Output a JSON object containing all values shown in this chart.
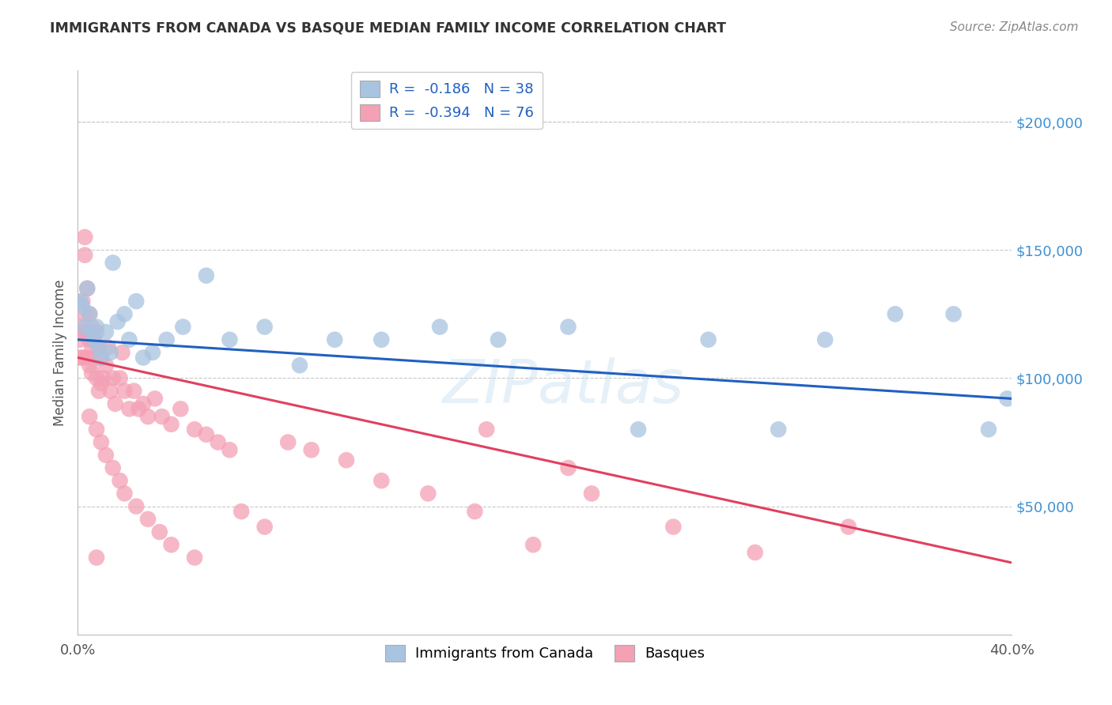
{
  "title": "IMMIGRANTS FROM CANADA VS BASQUE MEDIAN FAMILY INCOME CORRELATION CHART",
  "source": "Source: ZipAtlas.com",
  "ylabel": "Median Family Income",
  "xlim": [
    0.0,
    0.4
  ],
  "ylim": [
    0,
    220000
  ],
  "ytick_positions": [
    50000,
    100000,
    150000,
    200000
  ],
  "ytick_labels": [
    "$50,000",
    "$100,000",
    "$150,000",
    "$200,000"
  ],
  "watermark": "ZIPatlas",
  "legend_r1": "R =  -0.186",
  "legend_n1": "N = 38",
  "legend_r2": "R =  -0.394",
  "legend_n2": "N = 76",
  "blue_scatter_x": [
    0.001,
    0.002,
    0.003,
    0.004,
    0.005,
    0.006,
    0.007,
    0.008,
    0.009,
    0.01,
    0.012,
    0.014,
    0.015,
    0.017,
    0.02,
    0.022,
    0.025,
    0.028,
    0.032,
    0.038,
    0.045,
    0.055,
    0.065,
    0.08,
    0.095,
    0.11,
    0.13,
    0.155,
    0.18,
    0.21,
    0.24,
    0.27,
    0.3,
    0.32,
    0.35,
    0.375,
    0.39,
    0.398
  ],
  "blue_scatter_y": [
    130000,
    128000,
    120000,
    135000,
    125000,
    118000,
    115000,
    120000,
    112000,
    108000,
    118000,
    110000,
    145000,
    122000,
    125000,
    115000,
    130000,
    108000,
    110000,
    115000,
    120000,
    140000,
    115000,
    120000,
    105000,
    115000,
    115000,
    120000,
    115000,
    120000,
    80000,
    115000,
    80000,
    115000,
    125000,
    125000,
    80000,
    92000
  ],
  "pink_scatter_x": [
    0.001,
    0.001,
    0.001,
    0.002,
    0.002,
    0.002,
    0.003,
    0.003,
    0.003,
    0.004,
    0.004,
    0.004,
    0.005,
    0.005,
    0.005,
    0.006,
    0.006,
    0.006,
    0.007,
    0.007,
    0.008,
    0.008,
    0.009,
    0.009,
    0.01,
    0.01,
    0.011,
    0.012,
    0.013,
    0.014,
    0.015,
    0.016,
    0.018,
    0.019,
    0.02,
    0.022,
    0.024,
    0.026,
    0.028,
    0.03,
    0.033,
    0.036,
    0.04,
    0.044,
    0.05,
    0.055,
    0.06,
    0.065,
    0.07,
    0.08,
    0.09,
    0.1,
    0.115,
    0.13,
    0.15,
    0.17,
    0.175,
    0.195,
    0.21,
    0.22,
    0.255,
    0.29,
    0.005,
    0.008,
    0.01,
    0.012,
    0.015,
    0.018,
    0.02,
    0.025,
    0.03,
    0.035,
    0.04,
    0.05,
    0.33,
    0.008
  ],
  "pink_scatter_y": [
    120000,
    115000,
    108000,
    130000,
    118000,
    108000,
    155000,
    148000,
    125000,
    135000,
    118000,
    108000,
    125000,
    115000,
    105000,
    120000,
    112000,
    102000,
    115000,
    108000,
    118000,
    100000,
    112000,
    95000,
    108000,
    98000,
    100000,
    105000,
    112000,
    95000,
    100000,
    90000,
    100000,
    110000,
    95000,
    88000,
    95000,
    88000,
    90000,
    85000,
    92000,
    85000,
    82000,
    88000,
    80000,
    78000,
    75000,
    72000,
    48000,
    42000,
    75000,
    72000,
    68000,
    60000,
    55000,
    48000,
    80000,
    35000,
    65000,
    55000,
    42000,
    32000,
    85000,
    80000,
    75000,
    70000,
    65000,
    60000,
    55000,
    50000,
    45000,
    40000,
    35000,
    30000,
    42000,
    30000
  ],
  "blue_line_x": [
    0.0,
    0.4
  ],
  "blue_line_y": [
    115000,
    92000
  ],
  "pink_line_x": [
    0.0,
    0.4
  ],
  "pink_line_y": [
    108000,
    28000
  ],
  "blue_color": "#a8c4e0",
  "pink_color": "#f4a0b5",
  "blue_line_color": "#2060c0",
  "pink_line_color": "#e04060",
  "grid_color": "#c8c8c8",
  "title_color": "#333333",
  "right_axis_label_color": "#4090d0",
  "background_color": "#ffffff"
}
